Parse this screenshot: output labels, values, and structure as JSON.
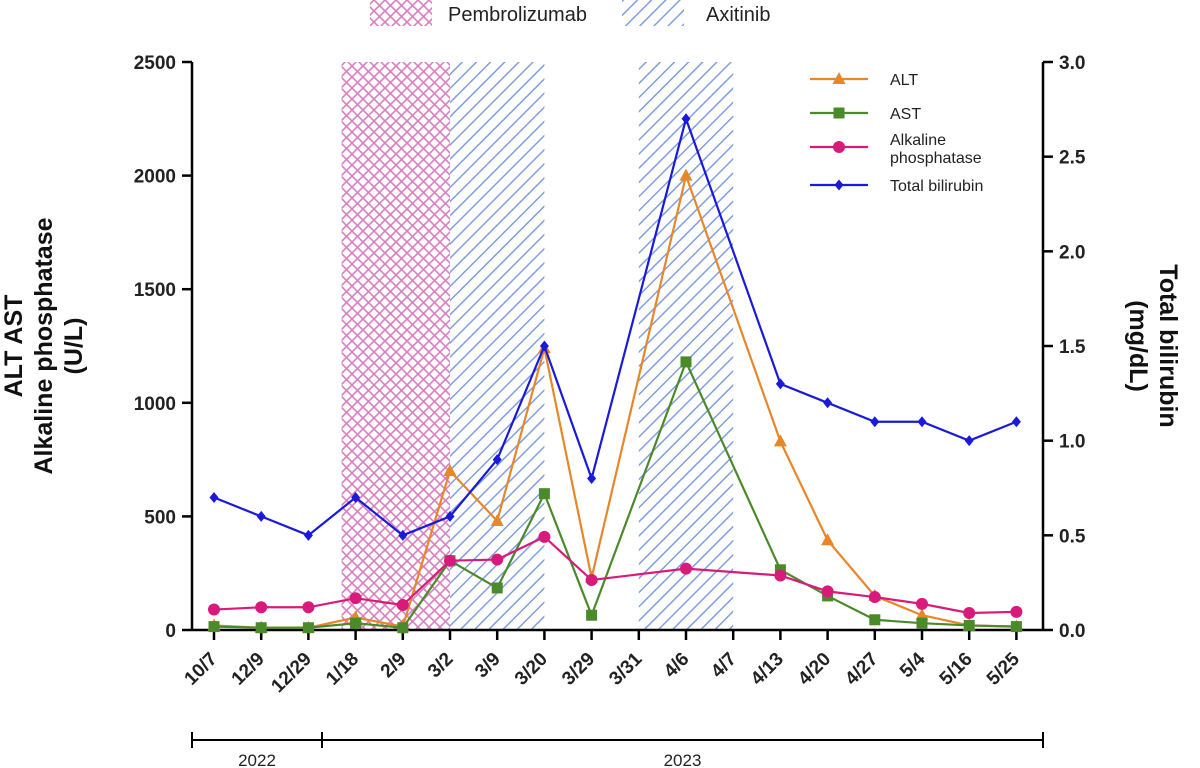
{
  "chart_data": {
    "type": "line",
    "categories": [
      "10/7",
      "12/9",
      "12/29",
      "1/18",
      "2/9",
      "3/2",
      "3/9",
      "3/20",
      "3/29",
      "3/31",
      "4/6",
      "4/7",
      "4/13",
      "4/20",
      "4/27",
      "5/4",
      "5/16",
      "5/25"
    ],
    "y_left_label_line1": "ALT  AST",
    "y_left_label_line2": "Alkaline phosphatase",
    "y_left_label_line3": "(U/L)",
    "y_right_label_line1": "Total bilirubin",
    "y_right_label_line2": "(mg/dL)",
    "y_left_ticks": [
      "0",
      "500",
      "1000",
      "1500",
      "2000",
      "2500"
    ],
    "y_right_ticks": [
      "0.0",
      "0.5",
      "1.0",
      "1.5",
      "2.0",
      "2.5",
      "3.0"
    ],
    "ylim_left": [
      0,
      2500
    ],
    "ylim_right": [
      0,
      3.0
    ],
    "series": [
      {
        "name": "ALT",
        "axis": "left",
        "color": "#E8862A",
        "marker": "triangle",
        "values": [
          20,
          10,
          10,
          55,
          15,
          700,
          480,
          1240,
          230,
          null,
          2000,
          null,
          830,
          395,
          150,
          65,
          20,
          15
        ]
      },
      {
        "name": "AST",
        "axis": "left",
        "color": "#4A8A2A",
        "marker": "square",
        "values": [
          15,
          10,
          10,
          30,
          10,
          305,
          185,
          600,
          65,
          null,
          1180,
          null,
          265,
          150,
          45,
          30,
          20,
          15
        ]
      },
      {
        "name": "Alkaline phosphatase",
        "axis": "left",
        "color": "#D81B7A",
        "marker": "circle",
        "values": [
          90,
          100,
          100,
          140,
          110,
          305,
          310,
          410,
          220,
          null,
          270,
          null,
          240,
          170,
          145,
          115,
          75,
          80
        ]
      },
      {
        "name": "Total bilirubin",
        "axis": "right",
        "color": "#1A1AD8",
        "marker": "diamond",
        "values": [
          0.7,
          0.6,
          0.5,
          0.7,
          0.5,
          0.6,
          0.9,
          1.5,
          0.8,
          null,
          2.7,
          null,
          1.3,
          1.2,
          1.1,
          1.1,
          1.0,
          1.1
        ]
      }
    ],
    "shaded_periods": [
      {
        "name": "Pembrolizumab",
        "start_category": "1/18",
        "end_category": "3/2",
        "color": "#D97FC0",
        "pattern": "crosshatch"
      },
      {
        "name": "Axitinib",
        "start_category": "3/2",
        "end_category": "3/20",
        "color": "#7F9FE0",
        "pattern": "diagonal"
      },
      {
        "name": "Axitinib",
        "start_category": "3/31",
        "end_category": "4/7",
        "color": "#7F9FE0",
        "pattern": "diagonal"
      }
    ],
    "top_legend": [
      {
        "label": "Pembrolizumab",
        "pattern": "crosshatch",
        "color": "#D97FC0"
      },
      {
        "label": "Axitinib",
        "pattern": "diagonal",
        "color": "#7F9FE0"
      }
    ],
    "legend_entries": [
      {
        "lines": [
          "ALT"
        ],
        "color": "#E8862A",
        "marker": "triangle"
      },
      {
        "lines": [
          "AST"
        ],
        "color": "#4A8A2A",
        "marker": "square"
      },
      {
        "lines": [
          "Alkaline",
          "phosphatase"
        ],
        "color": "#D81B7A",
        "marker": "circle"
      },
      {
        "lines": [
          "Total bilirubin"
        ],
        "color": "#1A1AD8",
        "marker": "diamond"
      }
    ],
    "year_groups": [
      {
        "label": "2022",
        "from_category": "10/7",
        "to_category": "1/18"
      },
      {
        "label": "2023",
        "from_category": "1/18",
        "to_category": "5/25"
      }
    ],
    "legend_position": "top-right",
    "grid": false
  }
}
